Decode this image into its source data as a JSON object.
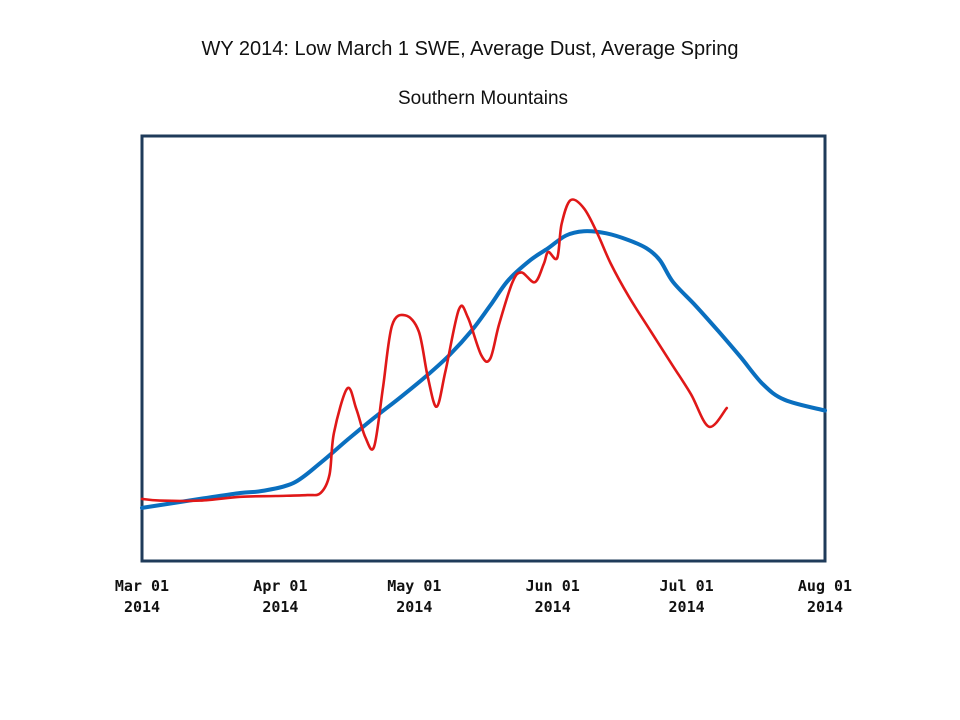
{
  "chart_data": {
    "type": "line",
    "title": "WY 2014: Low March 1 SWE, Average Dust, Average Spring",
    "subtitle": "Southern Mountains",
    "xlabel": "",
    "ylabel": "",
    "x_axis": {
      "type": "date",
      "range": [
        "2014-03-01",
        "2014-08-01"
      ],
      "ticks": [
        {
          "date": "2014-03-01",
          "line1": "Mar 01",
          "line2": "2014"
        },
        {
          "date": "2014-04-01",
          "line1": "Apr 01",
          "line2": "2014"
        },
        {
          "date": "2014-05-01",
          "line1": "May 01",
          "line2": "2014"
        },
        {
          "date": "2014-06-01",
          "line1": "Jun 01",
          "line2": "2014"
        },
        {
          "date": "2014-07-01",
          "line1": "Jul 01",
          "line2": "2014"
        },
        {
          "date": "2014-08-01",
          "line1": "Aug 01",
          "line2": "2014"
        }
      ]
    },
    "ylim": [
      0,
      100
    ],
    "grid": false,
    "legend": "none",
    "series": [
      {
        "color": "#0a6fbf",
        "points": [
          [
            "2014-03-01",
            12.5
          ],
          [
            "2014-03-14",
            14.6
          ],
          [
            "2014-03-23",
            16.0
          ],
          [
            "2014-03-28",
            16.5
          ],
          [
            "2014-04-04",
            18.4
          ],
          [
            "2014-04-10",
            23.1
          ],
          [
            "2014-04-16",
            28.5
          ],
          [
            "2014-04-22",
            33.7
          ],
          [
            "2014-04-28",
            38.6
          ],
          [
            "2014-05-04",
            43.8
          ],
          [
            "2014-05-09",
            48.6
          ],
          [
            "2014-05-14",
            54.4
          ],
          [
            "2014-05-18",
            60.1
          ],
          [
            "2014-05-22",
            66.0
          ],
          [
            "2014-05-27",
            70.8
          ],
          [
            "2014-05-31",
            73.6
          ],
          [
            "2014-06-04",
            76.6
          ],
          [
            "2014-06-08",
            77.6
          ],
          [
            "2014-06-13",
            77.1
          ],
          [
            "2014-06-18",
            75.5
          ],
          [
            "2014-06-22",
            73.6
          ],
          [
            "2014-06-25",
            70.8
          ],
          [
            "2014-06-28",
            65.6
          ],
          [
            "2014-07-03",
            60.1
          ],
          [
            "2014-07-08",
            54.2
          ],
          [
            "2014-07-13",
            48.1
          ],
          [
            "2014-07-18",
            41.7
          ],
          [
            "2014-07-23",
            37.9
          ],
          [
            "2014-08-01",
            35.4
          ]
        ]
      },
      {
        "color": "#e01818",
        "points": [
          [
            "2014-03-01",
            14.6
          ],
          [
            "2014-03-05",
            14.2
          ],
          [
            "2014-03-14",
            14.2
          ],
          [
            "2014-03-23",
            15.1
          ],
          [
            "2014-03-31",
            15.3
          ],
          [
            "2014-04-07",
            15.5
          ],
          [
            "2014-04-10",
            16.0
          ],
          [
            "2014-04-12",
            20.3
          ],
          [
            "2014-04-13",
            30.2
          ],
          [
            "2014-04-16",
            40.6
          ],
          [
            "2014-04-18",
            35.8
          ],
          [
            "2014-04-20",
            29.2
          ],
          [
            "2014-04-22",
            26.9
          ],
          [
            "2014-04-24",
            41.0
          ],
          [
            "2014-04-26",
            55.4
          ],
          [
            "2014-04-29",
            57.8
          ],
          [
            "2014-05-02",
            54.0
          ],
          [
            "2014-05-04",
            43.4
          ],
          [
            "2014-05-06",
            36.3
          ],
          [
            "2014-05-08",
            44.8
          ],
          [
            "2014-05-11",
            59.2
          ],
          [
            "2014-05-13",
            57.3
          ],
          [
            "2014-05-16",
            48.4
          ],
          [
            "2014-05-18",
            47.6
          ],
          [
            "2014-05-20",
            55.7
          ],
          [
            "2014-05-23",
            65.6
          ],
          [
            "2014-05-25",
            67.9
          ],
          [
            "2014-05-28",
            65.6
          ],
          [
            "2014-05-30",
            69.9
          ],
          [
            "2014-05-31",
            72.7
          ],
          [
            "2014-06-02",
            71.3
          ],
          [
            "2014-06-03",
            79.3
          ],
          [
            "2014-06-05",
            84.9
          ],
          [
            "2014-06-08",
            83.0
          ],
          [
            "2014-06-11",
            77.1
          ],
          [
            "2014-06-14",
            70.0
          ],
          [
            "2014-06-18",
            62.3
          ],
          [
            "2014-06-23",
            54.0
          ],
          [
            "2014-06-28",
            45.8
          ],
          [
            "2014-07-02",
            39.2
          ],
          [
            "2014-07-06",
            31.6
          ],
          [
            "2014-07-10",
            36.0
          ]
        ]
      }
    ]
  }
}
